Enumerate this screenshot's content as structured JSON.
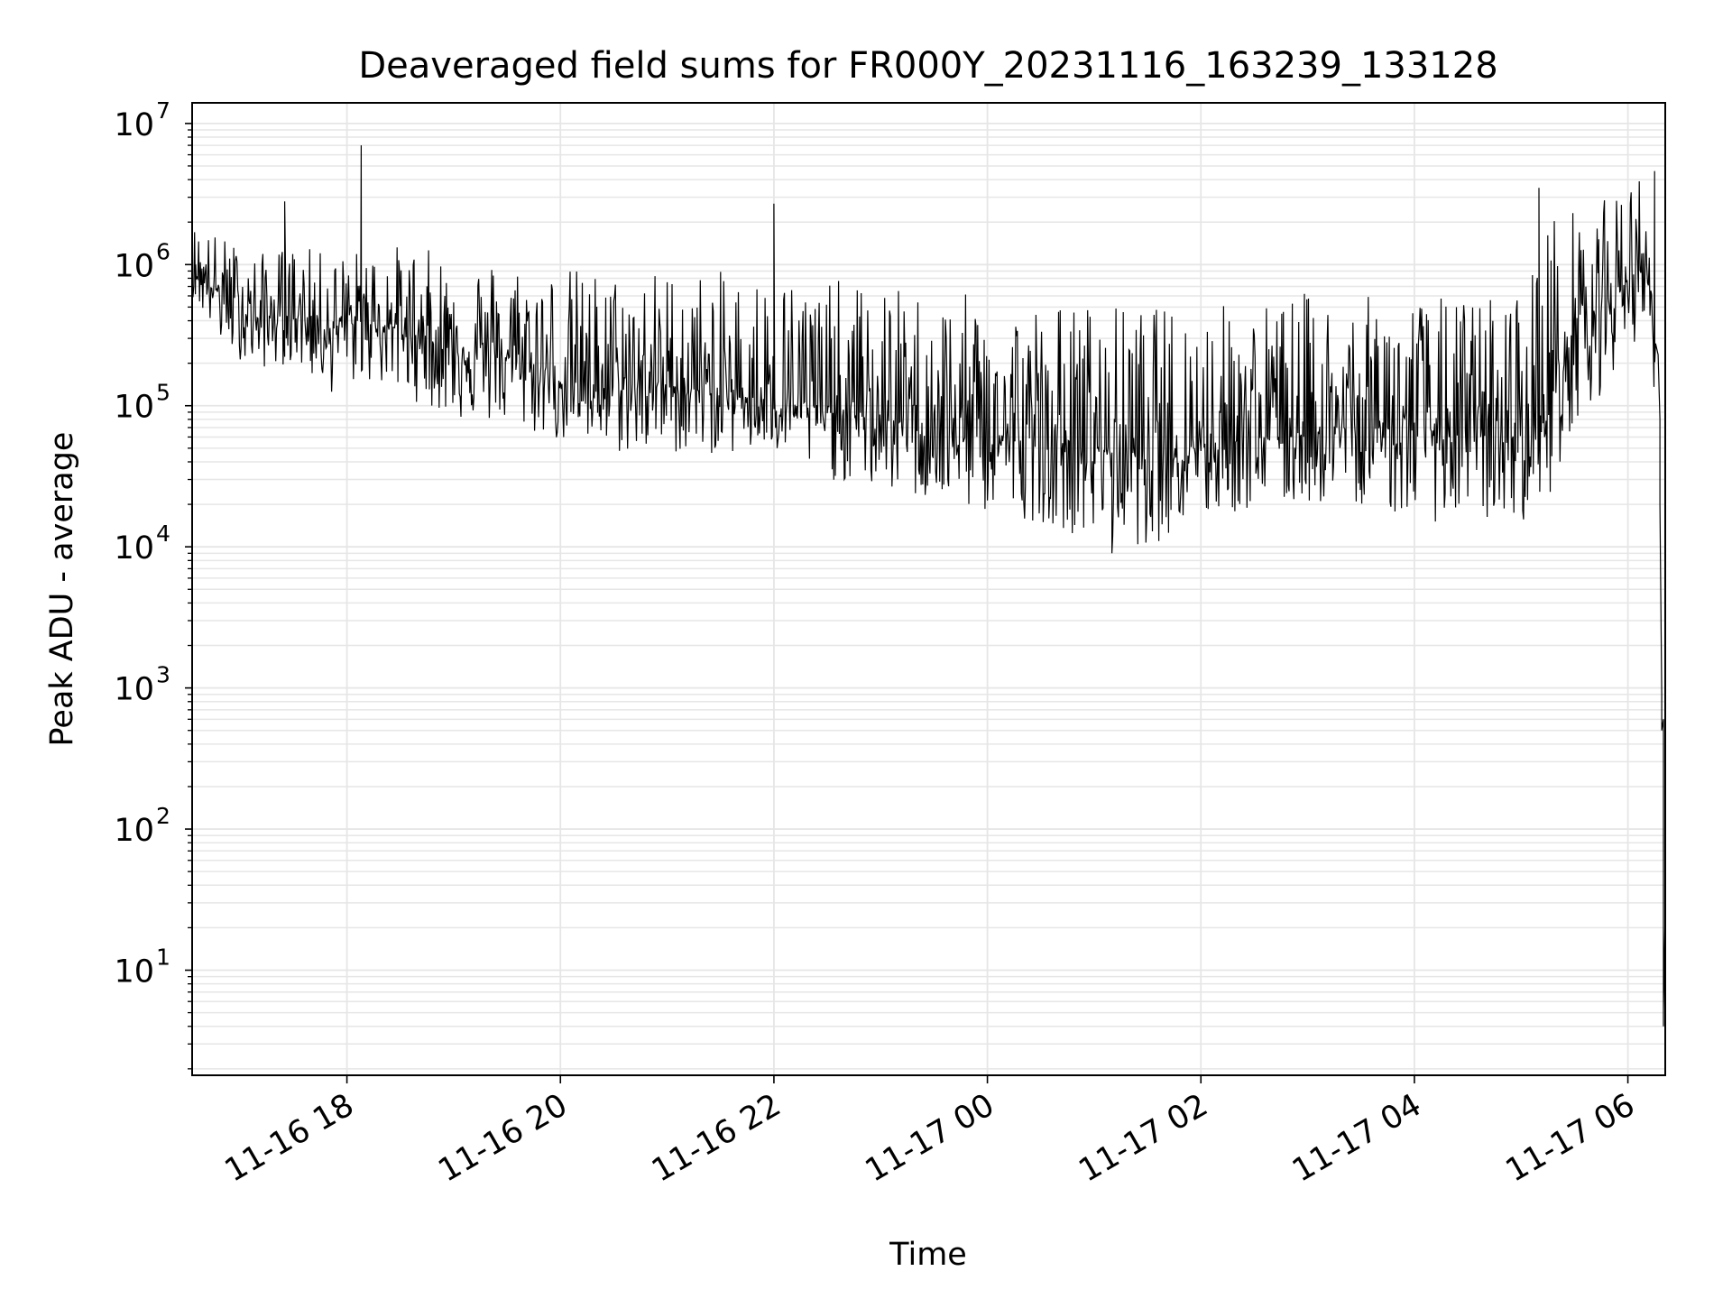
{
  "chart_data": {
    "type": "line",
    "title": "Deaveraged field sums for FR000Y_20231116_163239_133128",
    "xlabel": "Time",
    "ylabel": "Peak ADU - average",
    "x_scale": "time",
    "y_scale": "log",
    "xlim": [
      "2023-11-16 16:33",
      "2023-11-17 06:21"
    ],
    "ylim": [
      1.8,
      14000000
    ],
    "grid": true,
    "legend": "none",
    "line_color": "#000000",
    "grid_color": "#e6e6e6",
    "x_ticks": [
      {
        "value": "2023-11-16 18:00",
        "label": "11-16 18"
      },
      {
        "value": "2023-11-16 20:00",
        "label": "11-16 20"
      },
      {
        "value": "2023-11-16 22:00",
        "label": "11-16 22"
      },
      {
        "value": "2023-11-17 00:00",
        "label": "11-17 00"
      },
      {
        "value": "2023-11-17 02:00",
        "label": "11-17 02"
      },
      {
        "value": "2023-11-17 04:00",
        "label": "11-17 04"
      },
      {
        "value": "2023-11-17 06:00",
        "label": "11-17 06"
      }
    ],
    "y_ticks": [
      {
        "value": 10,
        "base": "10",
        "exp": "1"
      },
      {
        "value": 100,
        "base": "10",
        "exp": "2"
      },
      {
        "value": 1000,
        "base": "10",
        "exp": "3"
      },
      {
        "value": 10000,
        "base": "10",
        "exp": "4"
      },
      {
        "value": 100000,
        "base": "10",
        "exp": "5"
      },
      {
        "value": 1000000,
        "base": "10",
        "exp": "6"
      },
      {
        "value": 10000000,
        "base": "10",
        "exp": "7"
      }
    ],
    "series": [
      {
        "envelope": [
          {
            "x": "2023-11-16 16:33",
            "median": 900000,
            "low": 600000,
            "high": 2000000
          },
          {
            "x": "2023-11-16 16:50",
            "median": 600000,
            "low": 250000,
            "high": 1600000
          },
          {
            "x": "2023-11-16 17:10",
            "median": 400000,
            "low": 180000,
            "high": 1200000
          },
          {
            "x": "2023-11-16 17:30",
            "median": 450000,
            "low": 200000,
            "high": 1400000
          },
          {
            "x": "2023-11-16 17:50",
            "median": 350000,
            "low": 120000,
            "high": 1200000
          },
          {
            "x": "2023-11-16 18:10",
            "median": 400000,
            "low": 150000,
            "high": 1300000
          },
          {
            "x": "2023-11-16 18:30",
            "median": 350000,
            "low": 120000,
            "high": 1400000
          },
          {
            "x": "2023-11-16 19:00",
            "median": 250000,
            "low": 80000,
            "high": 1200000
          },
          {
            "x": "2023-11-16 19:30",
            "median": 220000,
            "low": 70000,
            "high": 1100000
          },
          {
            "x": "2023-11-16 20:00",
            "median": 150000,
            "low": 55000,
            "high": 1000000
          },
          {
            "x": "2023-11-16 20:30",
            "median": 130000,
            "low": 45000,
            "high": 900000
          },
          {
            "x": "2023-11-16 21:00",
            "median": 140000,
            "low": 45000,
            "high": 950000
          },
          {
            "x": "2023-11-16 21:30",
            "median": 120000,
            "low": 45000,
            "high": 900000
          },
          {
            "x": "2023-11-16 22:00",
            "median": 110000,
            "low": 45000,
            "high": 900000
          },
          {
            "x": "2023-11-16 22:30",
            "median": 90000,
            "low": 30000,
            "high": 800000
          },
          {
            "x": "2023-11-16 23:00",
            "median": 80000,
            "low": 25000,
            "high": 700000
          },
          {
            "x": "2023-11-16 23:30",
            "median": 70000,
            "low": 20000,
            "high": 650000
          },
          {
            "x": "2023-11-17 00:00",
            "median": 60000,
            "low": 17000,
            "high": 600000
          },
          {
            "x": "2023-11-17 00:30",
            "median": 55000,
            "low": 15000,
            "high": 550000
          },
          {
            "x": "2023-11-17 01:00",
            "median": 50000,
            "low": 11000,
            "high": 550000
          },
          {
            "x": "2023-11-17 01:30",
            "median": 45000,
            "low": 10000,
            "high": 500000
          },
          {
            "x": "2023-11-17 02:00",
            "median": 55000,
            "low": 15000,
            "high": 550000
          },
          {
            "x": "2023-11-17 02:30",
            "median": 60000,
            "low": 18000,
            "high": 550000
          },
          {
            "x": "2023-11-17 03:00",
            "median": 65000,
            "low": 20000,
            "high": 650000
          },
          {
            "x": "2023-11-17 03:30",
            "median": 70000,
            "low": 20000,
            "high": 600000
          },
          {
            "x": "2023-11-17 04:00",
            "median": 70000,
            "low": 15000,
            "high": 600000
          },
          {
            "x": "2023-11-17 04:30",
            "median": 60000,
            "low": 15000,
            "high": 600000
          },
          {
            "x": "2023-11-17 05:00",
            "median": 60000,
            "low": 15000,
            "high": 700000
          },
          {
            "x": "2023-11-17 05:15",
            "median": 80000,
            "low": 20000,
            "high": 2500000
          },
          {
            "x": "2023-11-17 05:30",
            "median": 400000,
            "low": 80000,
            "high": 2500000
          },
          {
            "x": "2023-11-17 05:45",
            "median": 500000,
            "low": 120000,
            "high": 2800000
          },
          {
            "x": "2023-11-17 06:05",
            "median": 900000,
            "low": 300000,
            "high": 4500000
          },
          {
            "x": "2023-11-17 06:12",
            "median": 1000000,
            "low": 400000,
            "high": 4500000
          },
          {
            "x": "2023-11-17 06:16",
            "median": 150000,
            "low": 60000,
            "high": 250000
          }
        ],
        "points": [
          {
            "x": "2023-11-16 16:35",
            "y": 1000000
          },
          {
            "x": "2023-11-16 17:25",
            "y": 2800000
          },
          {
            "x": "2023-11-16 18:08",
            "y": 7000000
          },
          {
            "x": "2023-11-16 22:00",
            "y": 2700000
          },
          {
            "x": "2023-11-17 01:10",
            "y": 9000
          },
          {
            "x": "2023-11-17 05:10",
            "y": 3500000
          },
          {
            "x": "2023-11-17 06:15",
            "y": 4600000
          },
          {
            "x": "2023-11-17 06:17",
            "y": 230000
          },
          {
            "x": "2023-11-17 06:18",
            "y": 80000
          },
          {
            "x": "2023-11-17 06:18",
            "y": 20000
          },
          {
            "x": "2023-11-17 06:19",
            "y": 900
          },
          {
            "x": "2023-11-17 06:19",
            "y": 500
          },
          {
            "x": "2023-11-17 06:20",
            "y": 600
          },
          {
            "x": "2023-11-17 06:20",
            "y": 100
          },
          {
            "x": "2023-11-17 06:20",
            "y": 4
          },
          {
            "x": "2023-11-17 06:20",
            "y": 20
          },
          {
            "x": "2023-11-17 06:21",
            "y": 3.7
          }
        ]
      }
    ]
  }
}
